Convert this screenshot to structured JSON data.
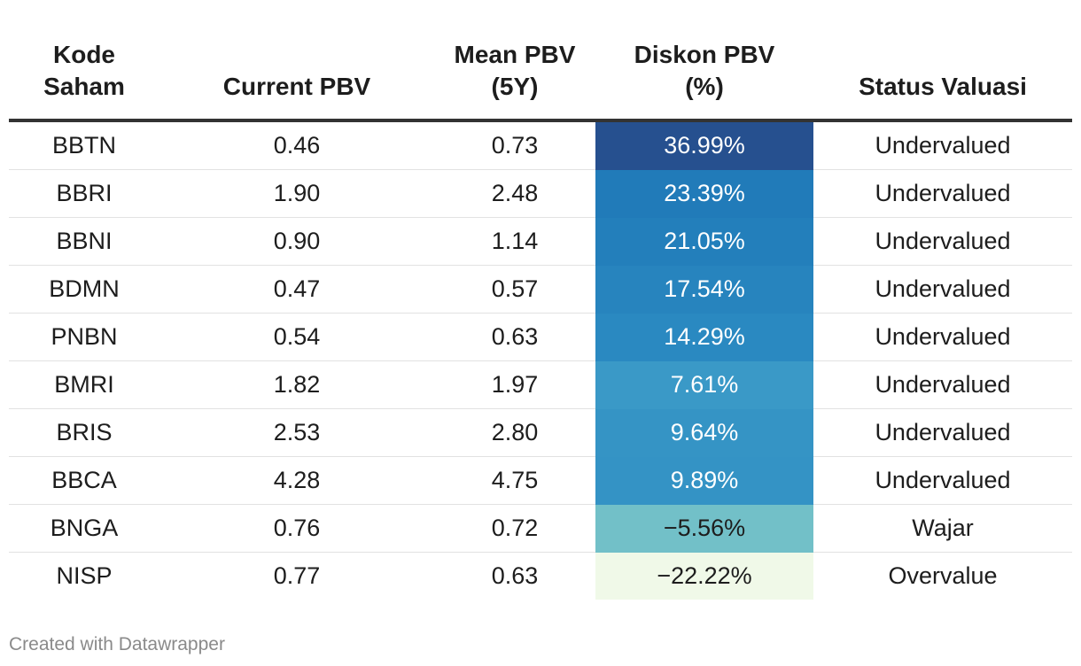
{
  "chart_data": {
    "type": "table",
    "columns": [
      {
        "key": "kode",
        "label_lines": [
          "Kode",
          "Saham"
        ]
      },
      {
        "key": "current",
        "label_lines": [
          "Current PBV"
        ]
      },
      {
        "key": "mean",
        "label_lines": [
          "Mean PBV",
          "(5Y)"
        ]
      },
      {
        "key": "diskon",
        "label_lines": [
          "Diskon PBV",
          "(%)"
        ]
      },
      {
        "key": "status",
        "label_lines": [
          "Status Valuasi"
        ]
      }
    ],
    "rows": [
      {
        "kode": "BBTN",
        "current": "0.46",
        "mean": "0.73",
        "diskon": "36.99%",
        "diskon_value": 36.99,
        "status": "Undervalued"
      },
      {
        "kode": "BBRI",
        "current": "1.90",
        "mean": "2.48",
        "diskon": "23.39%",
        "diskon_value": 23.39,
        "status": "Undervalued"
      },
      {
        "kode": "BBNI",
        "current": "0.90",
        "mean": "1.14",
        "diskon": "21.05%",
        "diskon_value": 21.05,
        "status": "Undervalued"
      },
      {
        "kode": "BDMN",
        "current": "0.47",
        "mean": "0.57",
        "diskon": "17.54%",
        "diskon_value": 17.54,
        "status": "Undervalued"
      },
      {
        "kode": "PNBN",
        "current": "0.54",
        "mean": "0.63",
        "diskon": "14.29%",
        "diskon_value": 14.29,
        "status": "Undervalued"
      },
      {
        "kode": "BMRI",
        "current": "1.82",
        "mean": "1.97",
        "diskon": "7.61%",
        "diskon_value": 7.61,
        "status": "Undervalued"
      },
      {
        "kode": "BRIS",
        "current": "2.53",
        "mean": "2.80",
        "diskon": "9.64%",
        "diskon_value": 9.64,
        "status": "Undervalued"
      },
      {
        "kode": "BBCA",
        "current": "4.28",
        "mean": "4.75",
        "diskon": "9.89%",
        "diskon_value": 9.89,
        "status": "Undervalued"
      },
      {
        "kode": "BNGA",
        "current": "0.76",
        "mean": "0.72",
        "diskon": "−5.56%",
        "diskon_value": -5.56,
        "status": "Wajar"
      },
      {
        "kode": "NISP",
        "current": "0.77",
        "mean": "0.63",
        "diskon": "−22.22%",
        "diskon_value": -22.22,
        "status": "Overvalue"
      }
    ],
    "heatmap_column": "diskon",
    "heatmap_colors": [
      "#f0f9e8",
      "#8ed1c6",
      "#4aa8cc",
      "#2b8bc2",
      "#1f78b7",
      "#26508f"
    ],
    "heatmap_range": [
      -22.22,
      36.99
    ]
  },
  "footer": {
    "credit": "Created with Datawrapper"
  }
}
